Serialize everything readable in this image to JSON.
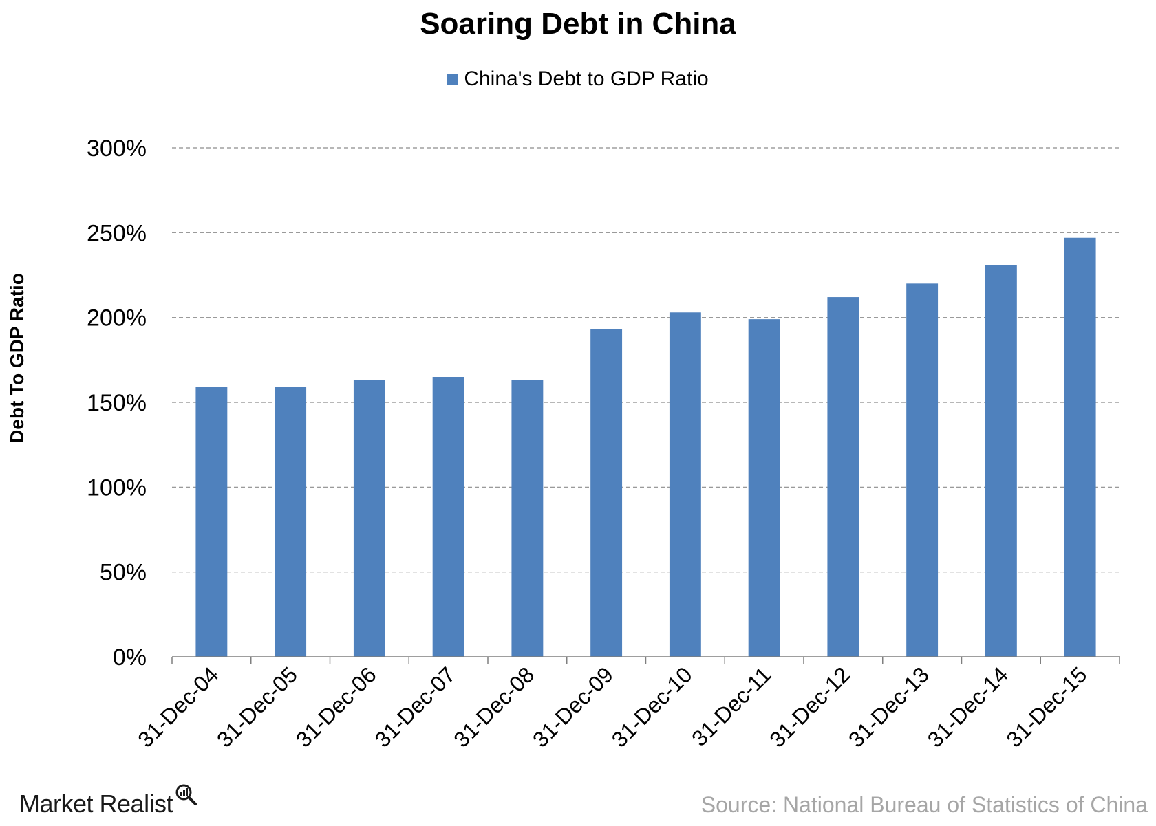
{
  "chart_data": {
    "type": "bar",
    "title": "Soaring Debt in China",
    "ylabel": "Debt To GDP Ratio",
    "xlabel": "",
    "categories": [
      "31-Dec-04",
      "31-Dec-05",
      "31-Dec-06",
      "31-Dec-07",
      "31-Dec-08",
      "31-Dec-09",
      "31-Dec-10",
      "31-Dec-11",
      "31-Dec-12",
      "31-Dec-13",
      "31-Dec-14",
      "31-Dec-15"
    ],
    "series": [
      {
        "name": "China's Debt to GDP Ratio",
        "values": [
          159,
          159,
          163,
          165,
          163,
          193,
          203,
          199,
          212,
          220,
          231,
          247
        ],
        "color": "#4f81bd"
      }
    ],
    "ylim": [
      0,
      300
    ],
    "yticks": [
      0,
      50,
      100,
      150,
      200,
      250,
      300
    ],
    "ytick_labels": [
      "0%",
      "50%",
      "100%",
      "150%",
      "200%",
      "250%",
      "300%"
    ],
    "grid": "horizontal-dashed",
    "legend_position": "top-center"
  },
  "footer": {
    "brand": "Market Realist",
    "source": "Source: National Bureau of Statistics of China"
  },
  "colors": {
    "bar": "#4f81bd",
    "gridline": "#8c8c8c",
    "source_text": "#a6a6a6"
  },
  "icons": {
    "brand_logo": "magnifier-bar-chart-icon"
  }
}
